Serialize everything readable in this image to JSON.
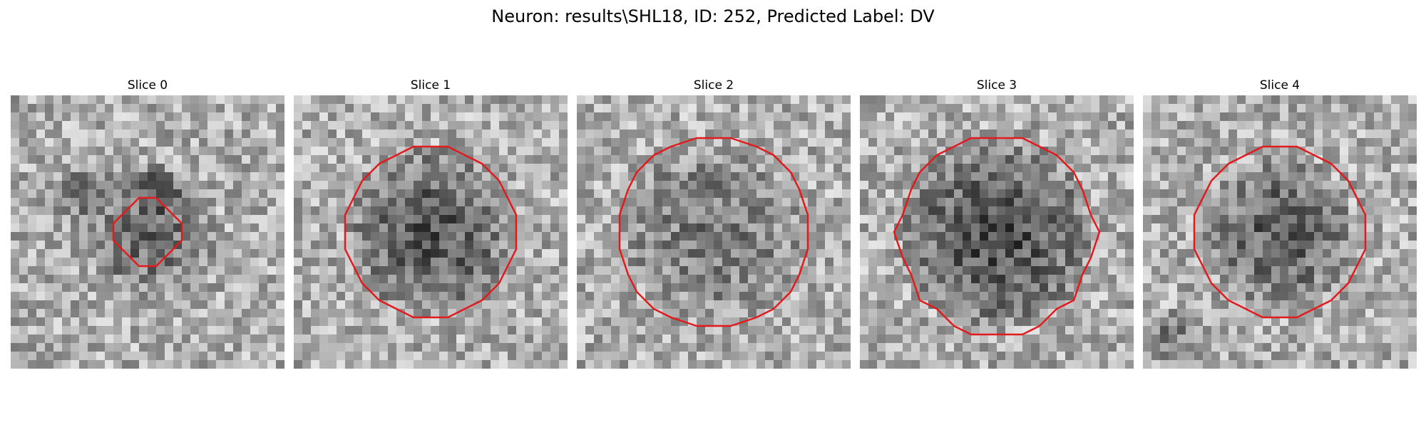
{
  "figure": {
    "title": "Neuron: results\\SHL18, ID: 252, Predicted Label: DV"
  },
  "panels": [
    {
      "title": "Slice 0",
      "seed": 11,
      "blob_radius": 0.26,
      "contour_radius": 0.12,
      "blob_cx": 0.5,
      "blob_cy": 0.5,
      "dark": 0.55,
      "extra_dark": [
        [
          0.25,
          0.35,
          0.12
        ],
        [
          0.55,
          0.35,
          0.1
        ]
      ]
    },
    {
      "title": "Slice 1",
      "seed": 23,
      "blob_radius": 0.32,
      "contour_radius": 0.32,
      "blob_cx": 0.5,
      "blob_cy": 0.5,
      "dark": 0.75,
      "extra_dark": []
    },
    {
      "title": "Slice 2",
      "seed": 37,
      "blob_radius": 0.34,
      "contour_radius": 0.35,
      "blob_cx": 0.5,
      "blob_cy": 0.5,
      "dark": 0.45,
      "extra_dark": []
    },
    {
      "title": "Slice 3",
      "seed": 41,
      "blob_radius": 0.36,
      "contour_radius": 0.36,
      "blob_cx": 0.5,
      "blob_cy": 0.51,
      "dark": 0.85,
      "extra_dark": []
    },
    {
      "title": "Slice 4",
      "seed": 53,
      "blob_radius": 0.28,
      "contour_radius": 0.32,
      "blob_cx": 0.5,
      "blob_cy": 0.5,
      "dark": 0.7,
      "extra_dark": [
        [
          0.1,
          0.88,
          0.1
        ]
      ]
    }
  ],
  "colors": {
    "contour": "#e31a1c"
  }
}
